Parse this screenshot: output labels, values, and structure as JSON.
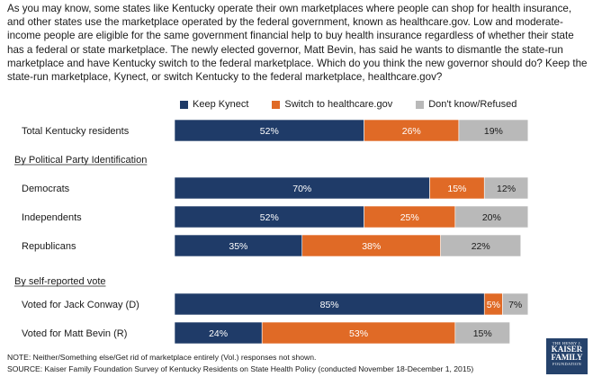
{
  "question": "As you may know, some states like Kentucky operate their own marketplaces where people can shop for health insurance, and other states use the marketplace operated by the federal government, known as healthcare.gov. Low and moderate-income people are eligible for the same government financial help to buy health insurance regardless of whether their state has a federal or state marketplace. The newly elected governor, Matt Bevin, has said he wants to dismantle the state-run marketplace and have Kentucky switch to the federal marketplace. Which do you think the new governor should do? Keep the state-run marketplace, Kynect, or switch Kentucky to the federal marketplace, healthcare.gov?",
  "chart_data": {
    "type": "bar",
    "orientation": "horizontal",
    "stacked": true,
    "value_suffix": "%",
    "legend_placement": "top",
    "series": [
      {
        "name": "Keep Kynect",
        "color": "#1f3b68"
      },
      {
        "name": "Switch to healthcare.gov",
        "color": "#e06a26"
      },
      {
        "name": "Don't know/Refused",
        "color": "#b9b9b9"
      }
    ],
    "groups": [
      {
        "heading": "",
        "rows": [
          {
            "label": "Total Kentucky residents",
            "values": [
              52,
              26,
              19
            ]
          }
        ]
      },
      {
        "heading": "By Political Party Identification",
        "rows": [
          {
            "label": "Democrats",
            "values": [
              70,
              15,
              12
            ]
          },
          {
            "label": "Independents",
            "values": [
              52,
              25,
              20
            ]
          },
          {
            "label": "Republicans",
            "values": [
              35,
              38,
              22
            ]
          }
        ]
      },
      {
        "heading": "By self-reported vote",
        "rows": [
          {
            "label": "Voted for Jack Conway (D)",
            "values": [
              85,
              5,
              7
            ]
          },
          {
            "label": "Voted for Matt Bevin (R)",
            "values": [
              24,
              53,
              15
            ]
          }
        ]
      }
    ]
  },
  "footer": {
    "note": "NOTE: Neither/Something else/Get rid of marketplace entirely (Vol.) responses not shown.",
    "source": "SOURCE: Kaiser Family Foundation Survey of Kentucky Residents on State Health Policy (conducted November 18-December 1, 2015)"
  },
  "logo": {
    "line1": "THE HENRY J.",
    "line2": "KAISER",
    "line3": "FAMILY",
    "line4": "FOUNDATION"
  }
}
